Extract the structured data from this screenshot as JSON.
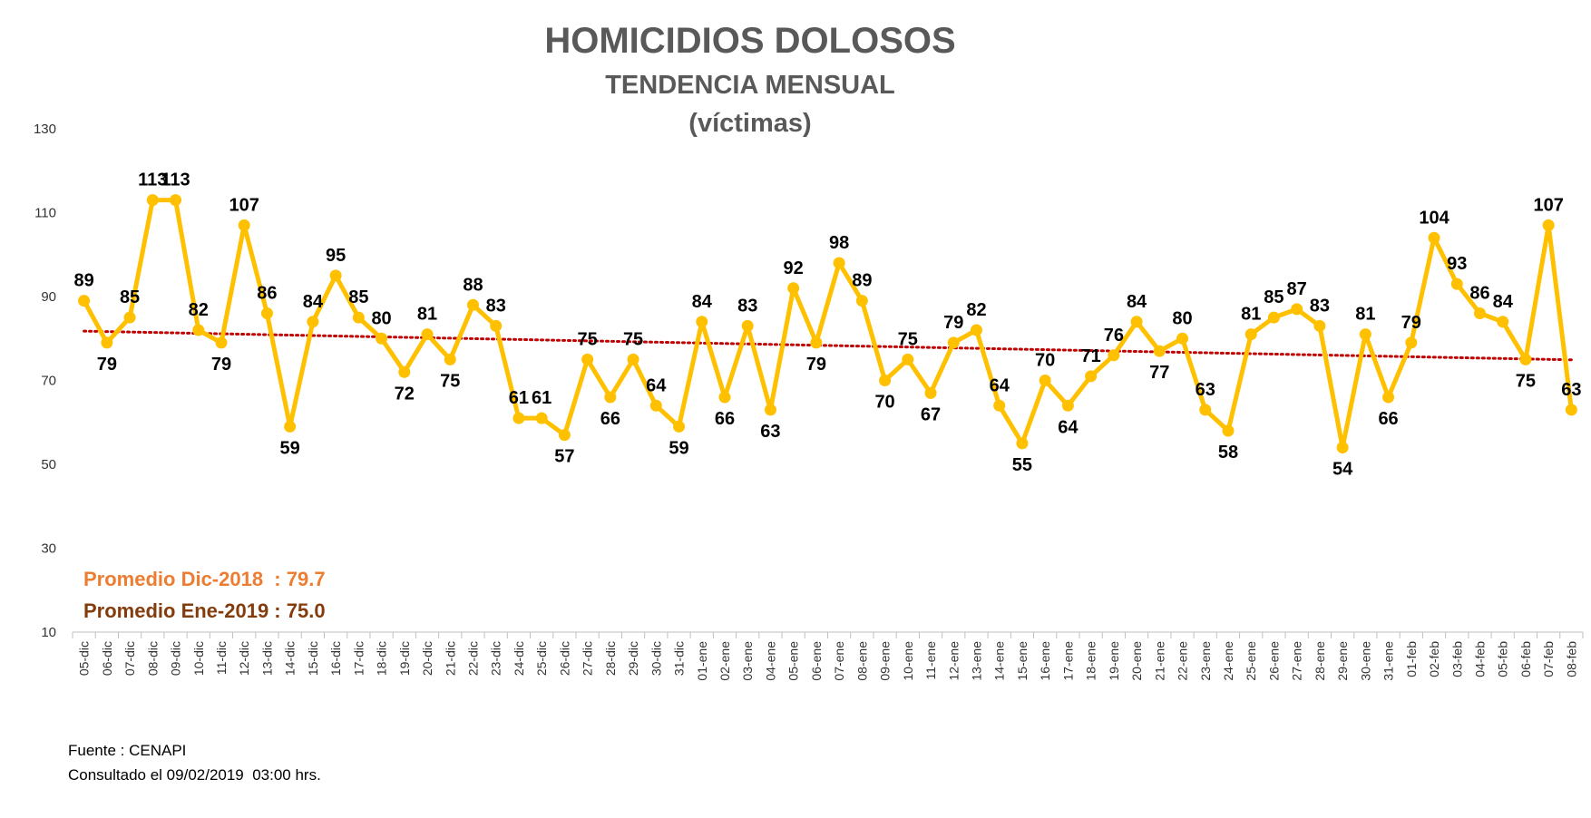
{
  "chart_data": {
    "type": "line",
    "title": "HOMICIDIOS DOLOSOS",
    "subtitle": "TENDENCIA MENSUAL",
    "subtitle2": "(víctimas)",
    "xlabel": "",
    "ylabel": "",
    "ylim": [
      10,
      130
    ],
    "yticks": [
      10,
      30,
      50,
      70,
      90,
      110,
      130
    ],
    "grid": false,
    "categories": [
      "05-dic",
      "06-dic",
      "07-dic",
      "08-dic",
      "09-dic",
      "10-dic",
      "11-dic",
      "12-dic",
      "13-dic",
      "14-dic",
      "15-dic",
      "16-dic",
      "17-dic",
      "18-dic",
      "19-dic",
      "20-dic",
      "21-dic",
      "22-dic",
      "23-dic",
      "24-dic",
      "25-dic",
      "26-dic",
      "27-dic",
      "28-dic",
      "29-dic",
      "30-dic",
      "31-dic",
      "01-ene",
      "02-ene",
      "03-ene",
      "04-ene",
      "05-ene",
      "06-ene",
      "07-ene",
      "08-ene",
      "09-ene",
      "10-ene",
      "11-ene",
      "12-ene",
      "13-ene",
      "14-ene",
      "15-ene",
      "16-ene",
      "17-ene",
      "18-ene",
      "19-ene",
      "20-ene",
      "21-ene",
      "22-ene",
      "23-ene",
      "24-ene",
      "25-ene",
      "26-ene",
      "27-ene",
      "28-ene",
      "29-ene",
      "30-ene",
      "31-ene",
      "01-feb",
      "02-feb",
      "03-feb",
      "04-feb",
      "05-feb",
      "06-feb",
      "07-feb",
      "08-feb"
    ],
    "series": [
      {
        "values": [
          89,
          79,
          85,
          113,
          113,
          82,
          79,
          107,
          86,
          59,
          84,
          95,
          85,
          80,
          72,
          81,
          75,
          88,
          83,
          61,
          61,
          57,
          75,
          66,
          75,
          64,
          59,
          84,
          66,
          83,
          63,
          92,
          79,
          98,
          89,
          70,
          75,
          67,
          79,
          82,
          64,
          55,
          70,
          64,
          71,
          76,
          84,
          77,
          80,
          63,
          58,
          81,
          85,
          87,
          83,
          54,
          81,
          66,
          79,
          104,
          93,
          86,
          84,
          75,
          107,
          63
        ],
        "color": "#FFC000"
      }
    ],
    "trendline": {
      "type": "linear",
      "style": "dotted",
      "color": "#C00000"
    }
  },
  "averages": {
    "dic": {
      "label": "Promedio Dic-2018  : 79.7",
      "color": "#ED7D31"
    },
    "ene": {
      "label": "Promedio Ene-2019 : 75.0",
      "color": "#843C0C"
    }
  },
  "footer": {
    "source": "Fuente : CENAPI",
    "consulted": "Consultado el 09/02/2019  03:00 hrs."
  }
}
